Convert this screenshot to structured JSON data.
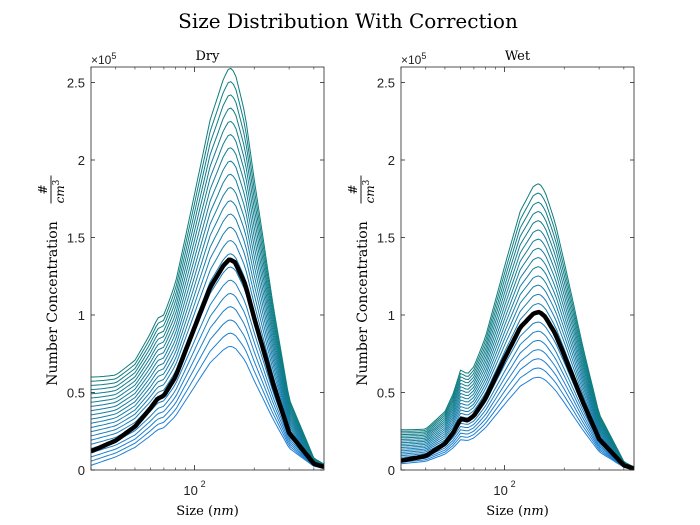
{
  "figure": {
    "title": "Size Distribution With Correction"
  },
  "chart_data": [
    {
      "type": "line",
      "title": "Dry",
      "xlabel": "Size (nm)",
      "ylabel": "Number Concentration #/cm^3",
      "y_multiplier": "×10^5",
      "x_scale": "log",
      "xlim": [
        30,
        450
      ],
      "ylim": [
        0,
        2.6
      ],
      "yticks": [
        0,
        0.5,
        1,
        1.5,
        2,
        2.5
      ],
      "xticks": [
        100
      ],
      "grid": false,
      "legend": "none",
      "colors": {
        "start": "#1f7fd6",
        "end": "#0e7d7d",
        "mean": "#000000"
      },
      "curve_family": {
        "count": 22,
        "x_peak": 150,
        "peak_min": 0.8,
        "peak_max": 2.6,
        "left_min": 0.03,
        "left_max": 0.6,
        "shoulder_x": 65
      },
      "mean_series": {
        "name": "mean",
        "x": [
          30,
          40,
          50,
          60,
          65,
          70,
          80,
          100,
          120,
          140,
          150,
          160,
          180,
          200,
          250,
          300,
          400,
          450
        ],
        "y": [
          0.12,
          0.19,
          0.28,
          0.4,
          0.46,
          0.48,
          0.6,
          0.92,
          1.18,
          1.32,
          1.36,
          1.34,
          1.2,
          0.98,
          0.55,
          0.24,
          0.04,
          0.02
        ]
      }
    },
    {
      "type": "line",
      "title": "Wet",
      "xlabel": "Size (nm)",
      "ylabel": "Number Concentration #/cm^3",
      "y_multiplier": "×10^5",
      "x_scale": "log",
      "xlim": [
        30,
        450
      ],
      "ylim": [
        0,
        2.6
      ],
      "yticks": [
        0,
        0.5,
        1,
        1.5,
        2,
        2.5
      ],
      "xticks": [
        100
      ],
      "grid": false,
      "legend": "none",
      "colors": {
        "start": "#1f7fd6",
        "end": "#0e7d7d",
        "mean": "#000000"
      },
      "curve_family": {
        "count": 22,
        "x_peak": 145,
        "peak_min": 0.6,
        "peak_max": 1.85,
        "left_min": 0.04,
        "left_max": 0.26,
        "shoulder_x": 60
      },
      "mean_series": {
        "name": "mean",
        "x": [
          30,
          40,
          50,
          55,
          60,
          65,
          70,
          80,
          100,
          120,
          140,
          150,
          160,
          180,
          200,
          250,
          300,
          400,
          450
        ],
        "y": [
          0.06,
          0.09,
          0.17,
          0.24,
          0.33,
          0.32,
          0.35,
          0.46,
          0.72,
          0.92,
          1.01,
          1.02,
          0.99,
          0.88,
          0.74,
          0.43,
          0.2,
          0.03,
          0.01
        ]
      }
    }
  ]
}
